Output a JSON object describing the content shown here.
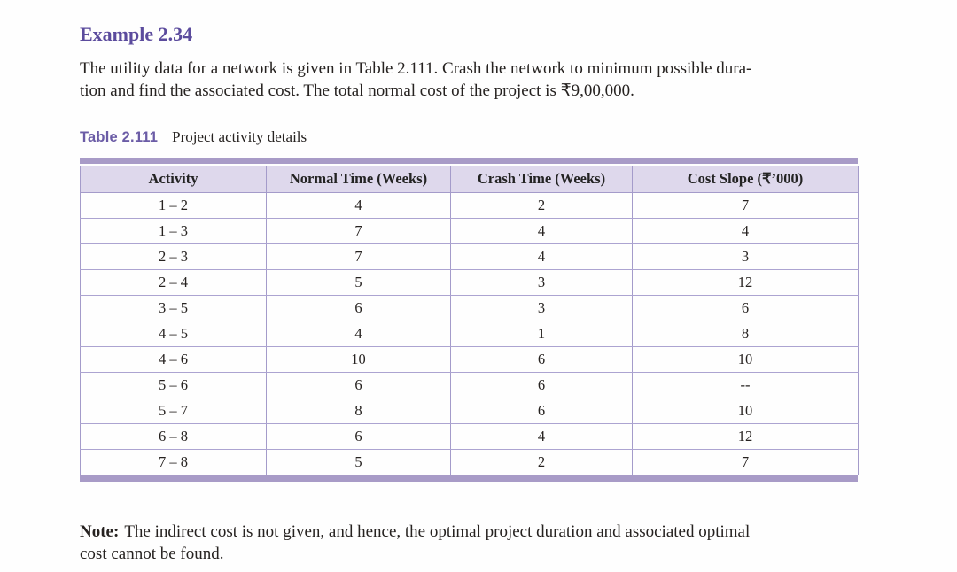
{
  "example": {
    "title": "Example 2.34",
    "body_line1": "The utility data for a network is given in Table 2.111. Crash the network to minimum possible dura-",
    "body_line2": "tion and find the associated cost. The total normal cost of the project is ₹9,00,000."
  },
  "table": {
    "label": "Table 2.111",
    "caption": "Project activity details",
    "headers": [
      "Activity",
      "Normal Time (Weeks)",
      "Crash Time (Weeks)",
      "Cost Slope (₹’000)"
    ],
    "rows": [
      [
        "1 – 2",
        "4",
        "2",
        "7"
      ],
      [
        "1 – 3",
        "7",
        "4",
        "4"
      ],
      [
        "2 – 3",
        "7",
        "4",
        "3"
      ],
      [
        "2 – 4",
        "5",
        "3",
        "12"
      ],
      [
        "3 – 5",
        "6",
        "3",
        "6"
      ],
      [
        "4 – 5",
        "4",
        "1",
        "8"
      ],
      [
        "4 – 6",
        "10",
        "6",
        "10"
      ],
      [
        "5 – 6",
        "6",
        "6",
        "--"
      ],
      [
        "5 – 7",
        "8",
        "6",
        "10"
      ],
      [
        "6 – 8",
        "6",
        "4",
        "12"
      ],
      [
        "7 – 8",
        "5",
        "2",
        "7"
      ]
    ]
  },
  "note": {
    "label": "Note:",
    "line1": "The indirect cost is not given, and hence, the optimal project duration and associated optimal",
    "line2": "cost cannot be found."
  },
  "colors": {
    "heading_purple": "#5b4b9d",
    "table_label_purple": "#6b5ca6",
    "table_bar_purple": "#a89bc7",
    "table_header_bg": "#ded8ec",
    "grid_line": "#a49bca",
    "body_text": "#262220"
  }
}
